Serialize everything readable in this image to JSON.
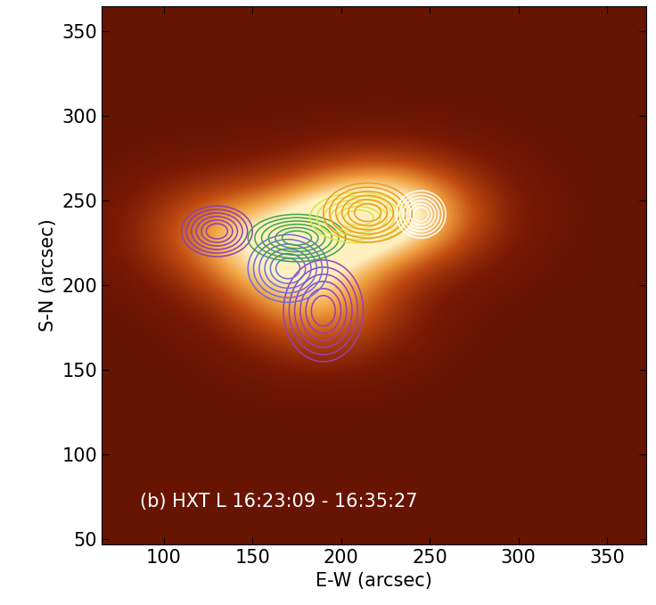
{
  "chart_data": {
    "type": "image",
    "annotation": "(b) HXT L 16:23:09 - 16:35:27",
    "x_label": "E-W (arcsec)",
    "y_label": "S-N (arcsec)",
    "xlim": [
      65,
      372
    ],
    "ylim": [
      47,
      365
    ],
    "xticks": [
      100,
      150,
      200,
      250,
      300,
      350
    ],
    "yticks": [
      50,
      100,
      150,
      200,
      250,
      300,
      350
    ],
    "contours": [
      {
        "color": "#8e3fb5",
        "x": 130,
        "y": 232,
        "width": 40,
        "height": 30
      },
      {
        "color": "#9b3fb0",
        "x": 190,
        "y": 185,
        "width": 45,
        "height": 60
      },
      {
        "color": "#6a6ee0",
        "x": 170,
        "y": 210,
        "width": 45,
        "height": 40
      },
      {
        "color": "#3aa64a",
        "x": 175,
        "y": 228,
        "width": 55,
        "height": 28
      },
      {
        "color": "#d8e64a",
        "x": 210,
        "y": 240,
        "width": 55,
        "height": 30
      },
      {
        "color": "#f09a20",
        "x": 215,
        "y": 243,
        "width": 50,
        "height": 35
      },
      {
        "color": "#ffffff",
        "x": 245,
        "y": 242,
        "width": 28,
        "height": 28
      }
    ]
  }
}
